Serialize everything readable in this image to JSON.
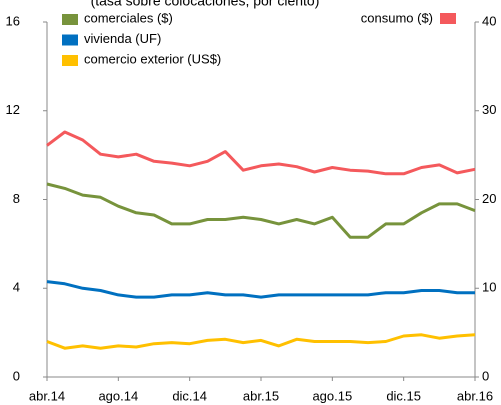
{
  "chart_data": {
    "type": "line",
    "title": "(tasa sobre colocaciones, por ciento)",
    "categories": [
      "abr.14",
      null,
      null,
      null,
      "ago.14",
      null,
      null,
      null,
      "dic.14",
      null,
      null,
      null,
      "abr.15",
      null,
      null,
      null,
      "ago.15",
      null,
      null,
      null,
      "dic.15",
      null,
      null,
      null,
      "abr.16"
    ],
    "ylim": [
      0,
      16
    ],
    "yticks": [
      0,
      4,
      8,
      12,
      16
    ],
    "y2lim": [
      0,
      40
    ],
    "y2ticks": [
      0,
      10,
      20,
      30,
      40
    ],
    "series": [
      {
        "name": "comerciales ($)",
        "color": "#77933c",
        "values": [
          8.7,
          8.5,
          8.2,
          8.1,
          7.7,
          7.4,
          7.3,
          6.9,
          6.9,
          7.1,
          7.1,
          7.2,
          7.1,
          6.9,
          7.1,
          6.9,
          7.2,
          6.3,
          6.3,
          6.9,
          6.9,
          7.4,
          7.8,
          7.8,
          7.5
        ]
      },
      {
        "name": "vivienda (UF)",
        "color": "#0070c0",
        "values": [
          4.3,
          4.2,
          4.0,
          3.9,
          3.7,
          3.6,
          3.6,
          3.7,
          3.7,
          3.8,
          3.7,
          3.7,
          3.6,
          3.7,
          3.7,
          3.7,
          3.7,
          3.7,
          3.7,
          3.8,
          3.8,
          3.9,
          3.9,
          3.8,
          3.8
        ]
      },
      {
        "name": "comercio exterior (US$)",
        "color": "#ffc000",
        "values": [
          1.6,
          1.3,
          1.4,
          1.3,
          1.4,
          1.35,
          1.5,
          1.55,
          1.5,
          1.65,
          1.7,
          1.55,
          1.65,
          1.4,
          1.7,
          1.6,
          1.6,
          1.6,
          1.55,
          1.6,
          1.85,
          1.9,
          1.75,
          1.85,
          1.9
        ]
      },
      {
        "name": "consumo ($)",
        "color": "#f4595c",
        "axis": "y2",
        "values": [
          26.1,
          27.6,
          26.7,
          25.1,
          24.8,
          25.1,
          24.3,
          24.1,
          23.8,
          24.3,
          25.4,
          23.3,
          23.8,
          24.0,
          23.7,
          23.1,
          23.6,
          23.3,
          23.2,
          22.9,
          22.9,
          23.6,
          23.9,
          23.0,
          23.4
        ]
      }
    ]
  }
}
